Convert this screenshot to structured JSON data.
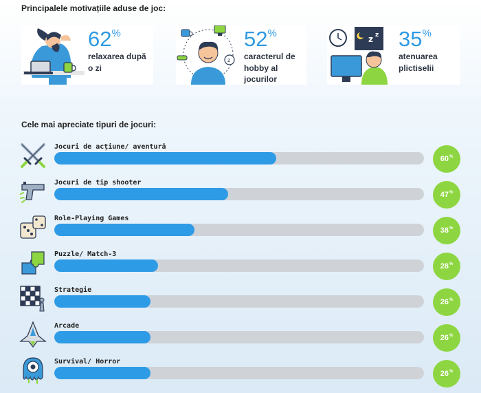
{
  "motivations": {
    "title": "Principalele motivațiile aduse de joc:",
    "items": [
      {
        "value": "62",
        "unit": "%",
        "desc": [
          "relaxarea după",
          "o zi"
        ],
        "icon": "relaxing-person-laptop-icon"
      },
      {
        "value": "52",
        "unit": "%",
        "desc": [
          "caracterul de",
          "hobby al",
          "jocurilor"
        ],
        "icon": "hobby-person-icon"
      },
      {
        "value": "35",
        "unit": "%",
        "desc": [
          "atenuarea",
          "plictiselii"
        ],
        "icon": "bored-person-monitor-icon"
      }
    ]
  },
  "game_types": {
    "title": "Cele mai apreciate tipuri de jocuri:"
  },
  "chart_data": {
    "type": "bar",
    "orientation": "horizontal",
    "title": "Cele mai apreciate tipuri de jocuri:",
    "categories": [
      "Jocuri de acțiune/ aventură",
      "Jocuri de tip shooter",
      "Role-Playing Games",
      "Puzzle/ Match-3",
      "Strategie",
      "Arcade",
      "Survival/ Horror"
    ],
    "values": [
      60,
      47,
      38,
      28,
      26,
      26,
      26
    ],
    "value_labels": [
      "60",
      "47",
      "38",
      "28",
      "26",
      "26",
      "26"
    ],
    "unit": "%",
    "xlim": [
      0,
      100
    ],
    "icons": [
      "crossed-swords-icon",
      "pistol-icon",
      "dice-icon",
      "puzzle-pieces-icon",
      "chess-board-icon",
      "spaceship-icon",
      "monster-eye-icon"
    ],
    "colors": {
      "fill": "#2e9be6",
      "track": "#cfd3d8",
      "badge": "#8dd641"
    }
  }
}
